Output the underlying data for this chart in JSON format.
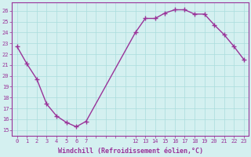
{
  "x": [
    0,
    1,
    2,
    3,
    4,
    5,
    6,
    7,
    12,
    13,
    14,
    15,
    16,
    17,
    18,
    19,
    20,
    21,
    22,
    23
  ],
  "y": [
    22.7,
    21.1,
    19.7,
    17.4,
    16.3,
    15.7,
    15.3,
    15.8,
    24.0,
    25.3,
    25.3,
    25.8,
    26.1,
    26.1,
    25.7,
    25.7,
    24.7,
    23.8,
    22.7,
    21.5
  ],
  "line_color": "#993399",
  "marker_color": "#993399",
  "bg_color": "#d4f0f0",
  "grid_color": "#aadddd",
  "xlabel": "Windchill (Refroidissement éolien,°C)",
  "yticks": [
    15,
    16,
    17,
    18,
    19,
    20,
    21,
    22,
    23,
    24,
    25,
    26
  ],
  "all_xticks": [
    0,
    1,
    2,
    3,
    4,
    5,
    6,
    7,
    8,
    9,
    10,
    11,
    12,
    13,
    14,
    15,
    16,
    17,
    18,
    19,
    20,
    21,
    22,
    23
  ],
  "labeled_xticks": [
    0,
    1,
    2,
    3,
    4,
    5,
    6,
    7,
    12,
    13,
    14,
    15,
    16,
    17,
    18,
    19,
    20,
    21,
    22,
    23
  ],
  "unlabeled_xticks": [
    8,
    9,
    10,
    11
  ],
  "ylim": [
    14.5,
    26.8
  ],
  "xlim": [
    -0.5,
    23.5
  ],
  "axis_color": "#993399",
  "tick_color": "#993399",
  "label_color": "#993399",
  "tick_fontsize": 5,
  "label_fontsize": 6,
  "linewidth": 1.0,
  "markersize": 4
}
